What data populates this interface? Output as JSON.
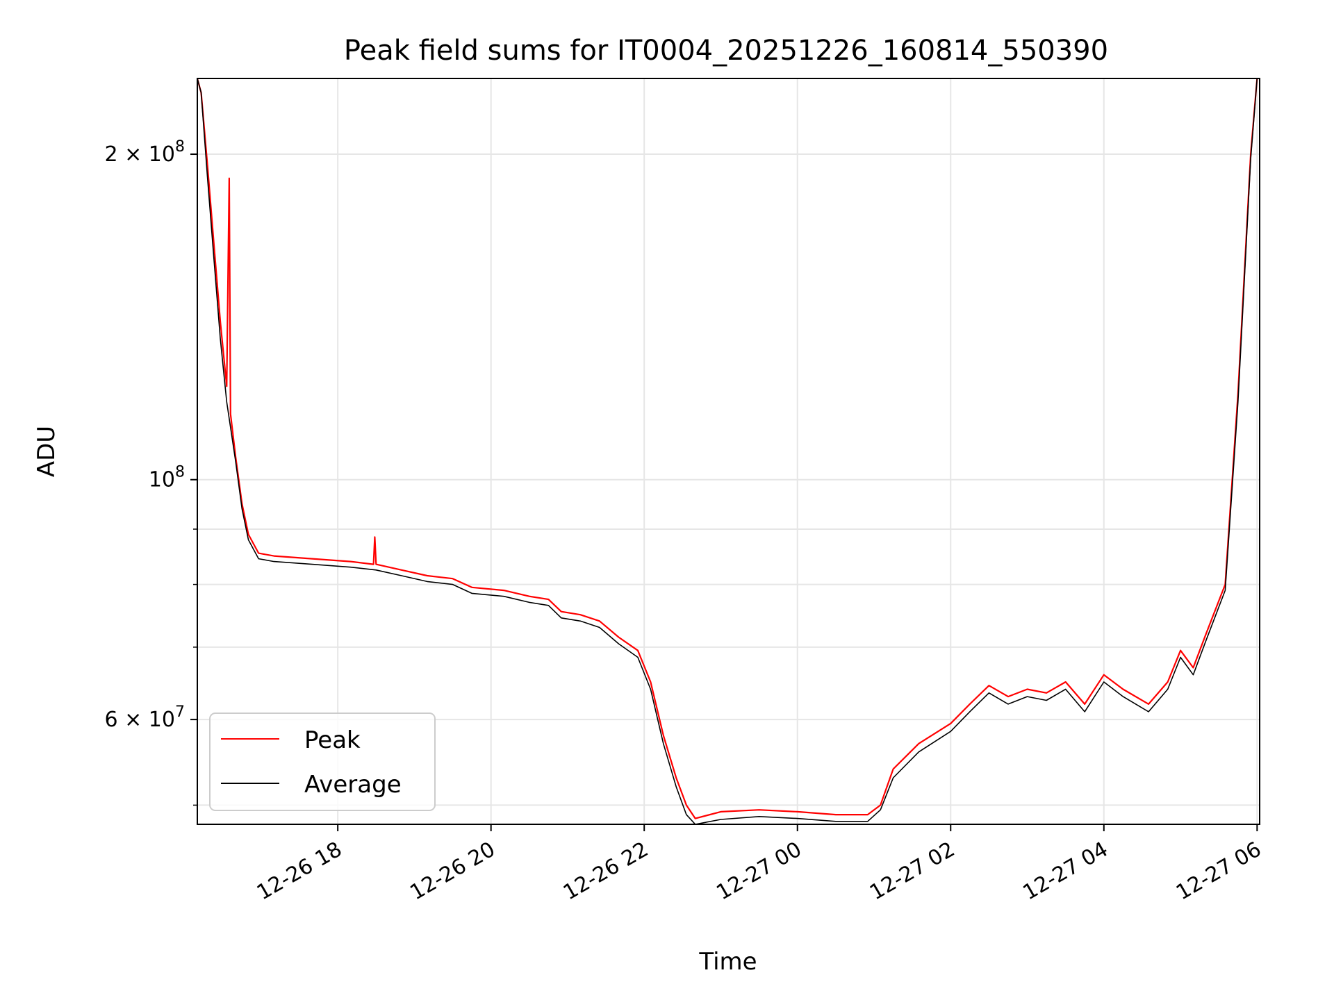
{
  "chart_data": {
    "type": "line",
    "title": "Peak field sums for IT0004_20251226_160814_550390",
    "xlabel": "Time",
    "ylabel": "ADU",
    "x_axis": {
      "kind": "time",
      "range": [
        "2025-12-26 16:10",
        "2025-12-27 06:02"
      ],
      "ticks": [
        {
          "value": "2025-12-26 18:00",
          "label": "12-26 18"
        },
        {
          "value": "2025-12-26 20:00",
          "label": "12-26 20"
        },
        {
          "value": "2025-12-26 22:00",
          "label": "12-26 22"
        },
        {
          "value": "2025-12-27 00:00",
          "label": "12-27 00"
        },
        {
          "value": "2025-12-27 02:00",
          "label": "12-27 02"
        },
        {
          "value": "2025-12-27 04:00",
          "label": "12-27 04"
        },
        {
          "value": "2025-12-27 06:00",
          "label": "12-27 06"
        }
      ]
    },
    "y_axis": {
      "scale": "log",
      "range": [
        48000000,
        235000000
      ],
      "major_ticks": [
        {
          "value": 100000000,
          "base": "10",
          "exp": "8"
        },
        {
          "value": 200000000,
          "base": "2 × 10",
          "exp": "8"
        },
        {
          "value": 60000000,
          "base": "6 × 10",
          "exp": "7"
        }
      ],
      "minor_ticks": [
        50000000,
        70000000,
        80000000,
        90000000
      ]
    },
    "grid": true,
    "legend": {
      "placement": "lower-left",
      "entries": [
        "Peak",
        "Average"
      ]
    },
    "series": [
      {
        "name": "Peak",
        "color": "#ff0000",
        "points": [
          [
            "2025-12-26 16:10",
            235000000
          ],
          [
            "2025-12-26 16:13",
            228000000
          ],
          [
            "2025-12-26 16:18",
            195000000
          ],
          [
            "2025-12-26 16:23",
            165000000
          ],
          [
            "2025-12-26 16:28",
            140000000
          ],
          [
            "2025-12-26 16:33",
            122000000
          ],
          [
            "2025-12-26 16:35",
            190000000
          ],
          [
            "2025-12-26 16:36",
            115000000
          ],
          [
            "2025-12-26 16:40",
            105000000
          ],
          [
            "2025-12-26 16:45",
            95000000
          ],
          [
            "2025-12-26 16:50",
            89000000
          ],
          [
            "2025-12-26 16:58",
            85500000
          ],
          [
            "2025-12-26 17:10",
            85000000
          ],
          [
            "2025-12-26 17:40",
            84500000
          ],
          [
            "2025-12-26 18:10",
            84000000
          ],
          [
            "2025-12-26 18:28",
            83500000
          ],
          [
            "2025-12-26 18:29",
            88500000
          ],
          [
            "2025-12-26 18:30",
            83500000
          ],
          [
            "2025-12-26 18:50",
            82500000
          ],
          [
            "2025-12-26 19:10",
            81500000
          ],
          [
            "2025-12-26 19:30",
            81000000
          ],
          [
            "2025-12-26 19:45",
            79500000
          ],
          [
            "2025-12-26 20:10",
            79000000
          ],
          [
            "2025-12-26 20:30",
            78000000
          ],
          [
            "2025-12-26 20:45",
            77500000
          ],
          [
            "2025-12-26 20:55",
            75500000
          ],
          [
            "2025-12-26 21:10",
            75000000
          ],
          [
            "2025-12-26 21:25",
            74000000
          ],
          [
            "2025-12-26 21:40",
            71500000
          ],
          [
            "2025-12-26 21:55",
            69500000
          ],
          [
            "2025-12-26 22:05",
            65000000
          ],
          [
            "2025-12-26 22:15",
            58000000
          ],
          [
            "2025-12-26 22:25",
            53000000
          ],
          [
            "2025-12-26 22:33",
            50000000
          ],
          [
            "2025-12-26 22:40",
            48600000
          ],
          [
            "2025-12-26 23:00",
            49300000
          ],
          [
            "2025-12-26 23:30",
            49500000
          ],
          [
            "2025-12-27 00:00",
            49300000
          ],
          [
            "2025-12-27 00:30",
            49000000
          ],
          [
            "2025-12-27 00:55",
            49000000
          ],
          [
            "2025-12-27 01:05",
            50000000
          ],
          [
            "2025-12-27 01:15",
            54000000
          ],
          [
            "2025-12-27 01:35",
            57000000
          ],
          [
            "2025-12-27 02:00",
            59500000
          ],
          [
            "2025-12-27 02:15",
            62000000
          ],
          [
            "2025-12-27 02:30",
            64500000
          ],
          [
            "2025-12-27 02:45",
            63000000
          ],
          [
            "2025-12-27 03:00",
            64000000
          ],
          [
            "2025-12-27 03:15",
            63500000
          ],
          [
            "2025-12-27 03:30",
            65000000
          ],
          [
            "2025-12-27 03:45",
            62000000
          ],
          [
            "2025-12-27 04:00",
            66000000
          ],
          [
            "2025-12-27 04:15",
            64000000
          ],
          [
            "2025-12-27 04:35",
            62000000
          ],
          [
            "2025-12-27 04:50",
            65000000
          ],
          [
            "2025-12-27 05:00",
            69500000
          ],
          [
            "2025-12-27 05:10",
            67000000
          ],
          [
            "2025-12-27 05:20",
            72000000
          ],
          [
            "2025-12-27 05:35",
            80000000
          ],
          [
            "2025-12-27 05:45",
            120000000
          ],
          [
            "2025-12-27 05:55",
            200000000
          ],
          [
            "2025-12-27 06:00",
            235000000
          ]
        ]
      },
      {
        "name": "Average",
        "color": "#000000",
        "points": [
          [
            "2025-12-26 16:10",
            235000000
          ],
          [
            "2025-12-26 16:13",
            228000000
          ],
          [
            "2025-12-26 16:18",
            190000000
          ],
          [
            "2025-12-26 16:23",
            160000000
          ],
          [
            "2025-12-26 16:28",
            135000000
          ],
          [
            "2025-12-26 16:33",
            118000000
          ],
          [
            "2025-12-26 16:40",
            104000000
          ],
          [
            "2025-12-26 16:45",
            94000000
          ],
          [
            "2025-12-26 16:50",
            88000000
          ],
          [
            "2025-12-26 16:58",
            84500000
          ],
          [
            "2025-12-26 17:10",
            84000000
          ],
          [
            "2025-12-26 17:40",
            83500000
          ],
          [
            "2025-12-26 18:10",
            83000000
          ],
          [
            "2025-12-26 18:30",
            82500000
          ],
          [
            "2025-12-26 18:50",
            81500000
          ],
          [
            "2025-12-26 19:10",
            80500000
          ],
          [
            "2025-12-26 19:30",
            80000000
          ],
          [
            "2025-12-26 19:45",
            78500000
          ],
          [
            "2025-12-26 20:10",
            78000000
          ],
          [
            "2025-12-26 20:30",
            77000000
          ],
          [
            "2025-12-26 20:45",
            76500000
          ],
          [
            "2025-12-26 20:55",
            74500000
          ],
          [
            "2025-12-26 21:10",
            74000000
          ],
          [
            "2025-12-26 21:25",
            73000000
          ],
          [
            "2025-12-26 21:40",
            70500000
          ],
          [
            "2025-12-26 21:55",
            68500000
          ],
          [
            "2025-12-26 22:05",
            64000000
          ],
          [
            "2025-12-26 22:15",
            57000000
          ],
          [
            "2025-12-26 22:25",
            52000000
          ],
          [
            "2025-12-26 22:33",
            49000000
          ],
          [
            "2025-12-26 22:40",
            48000000
          ],
          [
            "2025-12-26 23:00",
            48500000
          ],
          [
            "2025-12-26 23:30",
            48800000
          ],
          [
            "2025-12-27 00:00",
            48600000
          ],
          [
            "2025-12-27 00:30",
            48300000
          ],
          [
            "2025-12-27 00:55",
            48300000
          ],
          [
            "2025-12-27 01:05",
            49500000
          ],
          [
            "2025-12-27 01:15",
            53000000
          ],
          [
            "2025-12-27 01:35",
            56000000
          ],
          [
            "2025-12-27 02:00",
            58500000
          ],
          [
            "2025-12-27 02:15",
            61000000
          ],
          [
            "2025-12-27 02:30",
            63500000
          ],
          [
            "2025-12-27 02:45",
            62000000
          ],
          [
            "2025-12-27 03:00",
            63000000
          ],
          [
            "2025-12-27 03:15",
            62500000
          ],
          [
            "2025-12-27 03:30",
            64000000
          ],
          [
            "2025-12-27 03:45",
            61000000
          ],
          [
            "2025-12-27 04:00",
            65000000
          ],
          [
            "2025-12-27 04:15",
            63000000
          ],
          [
            "2025-12-27 04:35",
            61000000
          ],
          [
            "2025-12-27 04:50",
            64000000
          ],
          [
            "2025-12-27 05:00",
            68500000
          ],
          [
            "2025-12-27 05:10",
            66000000
          ],
          [
            "2025-12-27 05:20",
            71000000
          ],
          [
            "2025-12-27 05:35",
            79000000
          ],
          [
            "2025-12-27 05:45",
            118000000
          ],
          [
            "2025-12-27 05:55",
            198000000
          ],
          [
            "2025-12-27 06:00",
            235000000
          ]
        ]
      }
    ]
  }
}
